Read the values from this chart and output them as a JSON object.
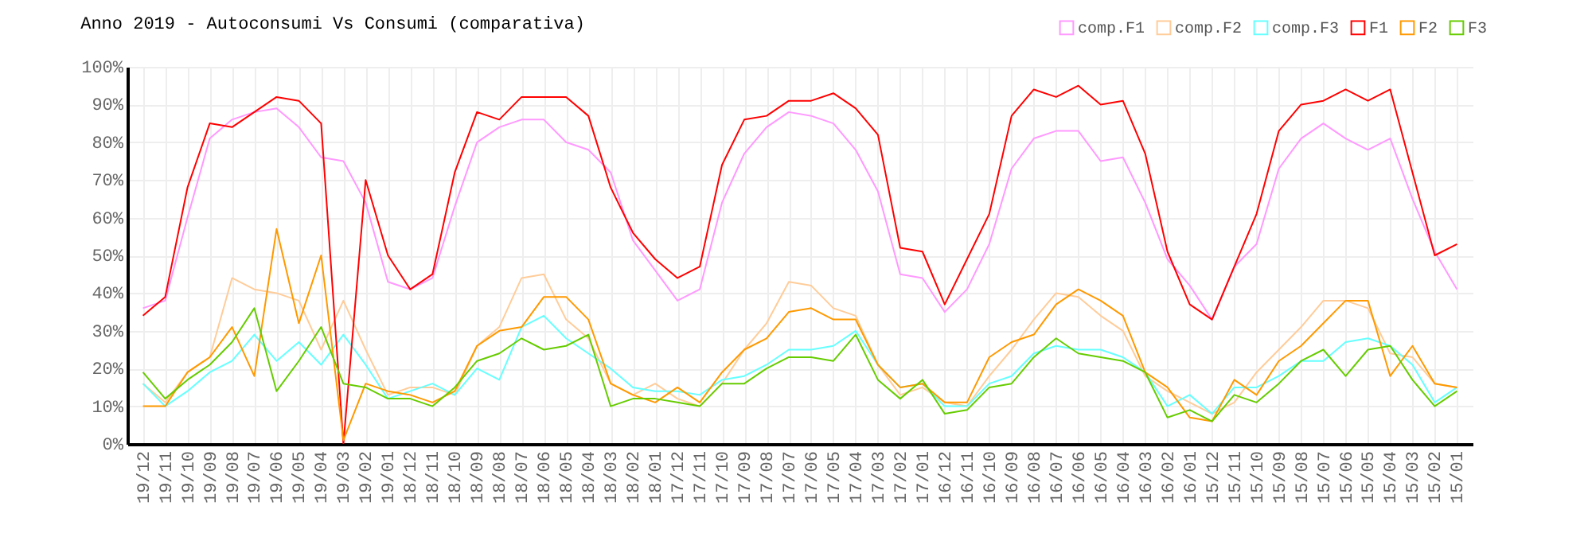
{
  "chart_data": {
    "type": "line",
    "title": "Anno 2019 - Autoconsumi Vs Consumi (comparativa)",
    "categories": [
      "19/12",
      "19/11",
      "19/10",
      "19/09",
      "19/08",
      "19/07",
      "19/06",
      "19/05",
      "19/04",
      "19/03",
      "19/02",
      "19/01",
      "18/12",
      "18/11",
      "18/10",
      "18/09",
      "18/08",
      "18/07",
      "18/06",
      "18/05",
      "18/04",
      "18/03",
      "18/02",
      "18/01",
      "17/12",
      "17/11",
      "17/10",
      "17/09",
      "17/08",
      "17/07",
      "17/06",
      "17/05",
      "17/04",
      "17/03",
      "17/02",
      "17/01",
      "16/12",
      "16/11",
      "16/10",
      "16/09",
      "16/08",
      "16/07",
      "16/06",
      "16/05",
      "16/04",
      "16/03",
      "16/02",
      "16/01",
      "15/12",
      "15/11",
      "15/10",
      "15/09",
      "15/08",
      "15/07",
      "15/06",
      "15/05",
      "15/04",
      "15/03",
      "15/02",
      "15/01"
    ],
    "series": [
      {
        "name": "comp.F1",
        "color": "#ff99ff",
        "values": [
          36,
          38,
          60,
          81,
          86,
          88,
          89,
          84,
          76,
          75,
          64,
          43,
          41,
          44,
          63,
          80,
          84,
          86,
          86,
          80,
          78,
          72,
          54,
          46,
          38,
          41,
          64,
          77,
          84,
          88,
          87,
          85,
          78,
          67,
          45,
          44,
          35,
          41,
          53,
          73,
          81,
          83,
          83,
          75,
          76,
          64,
          49,
          42,
          33,
          47,
          53,
          73,
          81,
          85,
          81,
          78,
          81,
          65,
          51,
          41
        ]
      },
      {
        "name": "comp.F2",
        "color": "#ffcc99",
        "values": [
          16,
          11,
          19,
          23,
          44,
          41,
          40,
          38,
          25,
          38,
          25,
          13,
          15,
          15,
          13,
          26,
          31,
          44,
          45,
          33,
          28,
          16,
          13,
          16,
          12,
          10,
          16,
          25,
          32,
          43,
          42,
          36,
          34,
          21,
          13,
          15,
          11,
          10,
          18,
          25,
          33,
          40,
          39,
          34,
          30,
          18,
          14,
          11,
          8,
          11,
          19,
          25,
          31,
          38,
          38,
          36,
          24,
          23,
          16,
          15
        ]
      },
      {
        "name": "comp.F3",
        "color": "#66ffff",
        "values": [
          16,
          10,
          14,
          19,
          22,
          29,
          22,
          27,
          21,
          29,
          21,
          12,
          14,
          16,
          13,
          20,
          17,
          31,
          34,
          28,
          24,
          20,
          15,
          14,
          14,
          13,
          17,
          18,
          21,
          25,
          25,
          26,
          30,
          21,
          15,
          16,
          10,
          10,
          16,
          18,
          24,
          26,
          25,
          25,
          23,
          19,
          10,
          13,
          8,
          15,
          15,
          18,
          22,
          22,
          27,
          28,
          26,
          21,
          11,
          15
        ]
      },
      {
        "name": "F1",
        "color": "#ff0000",
        "values": [
          34,
          39,
          68,
          85,
          84,
          88,
          92,
          91,
          85,
          0,
          70,
          50,
          41,
          45,
          72,
          88,
          86,
          92,
          92,
          92,
          87,
          68,
          56,
          49,
          44,
          47,
          74,
          86,
          87,
          91,
          91,
          93,
          89,
          82,
          52,
          51,
          37,
          49,
          61,
          87,
          94,
          92,
          95,
          90,
          91,
          77,
          51,
          37,
          33,
          47,
          61,
          83,
          90,
          91,
          94,
          91,
          94,
          72,
          50,
          53
        ]
      },
      {
        "name": "F2",
        "color": "#ff9900",
        "values": [
          10,
          10,
          19,
          23,
          31,
          18,
          57,
          32,
          50,
          1,
          16,
          14,
          13,
          11,
          14,
          26,
          30,
          31,
          39,
          39,
          33,
          16,
          13,
          11,
          15,
          11,
          19,
          25,
          28,
          35,
          36,
          33,
          33,
          21,
          15,
          16,
          11,
          11,
          23,
          27,
          29,
          37,
          41,
          38,
          34,
          19,
          15,
          7,
          6,
          17,
          13,
          22,
          26,
          32,
          38,
          38,
          18,
          26,
          16,
          15
        ]
      },
      {
        "name": "F3",
        "color": "#66cc00",
        "values": [
          19,
          12,
          17,
          21,
          27,
          36,
          14,
          22,
          31,
          16,
          15,
          12,
          12,
          10,
          15,
          22,
          24,
          28,
          25,
          26,
          29,
          10,
          12,
          12,
          11,
          10,
          16,
          16,
          20,
          23,
          23,
          22,
          29,
          17,
          12,
          17,
          8,
          9,
          15,
          16,
          23,
          28,
          24,
          23,
          22,
          19,
          7,
          9,
          6,
          13,
          11,
          16,
          22,
          25,
          18,
          25,
          26,
          17,
          10,
          14
        ]
      }
    ],
    "ylim": [
      0,
      100
    ],
    "yticks": [
      {
        "value": 0,
        "label": "0%"
      },
      {
        "value": 10,
        "label": "10%"
      },
      {
        "value": 20,
        "label": "20%"
      },
      {
        "value": 30,
        "label": "30%"
      },
      {
        "value": 40,
        "label": "40%"
      },
      {
        "value": 50,
        "label": "50%"
      },
      {
        "value": 60,
        "label": "60%"
      },
      {
        "value": 70,
        "label": "70%"
      },
      {
        "value": 80,
        "label": "80%"
      },
      {
        "value": 90,
        "label": "90%"
      },
      {
        "value": 100,
        "label": "100%"
      }
    ],
    "grid": true,
    "legend": "top right",
    "marker": "none",
    "line_style": "solid"
  }
}
